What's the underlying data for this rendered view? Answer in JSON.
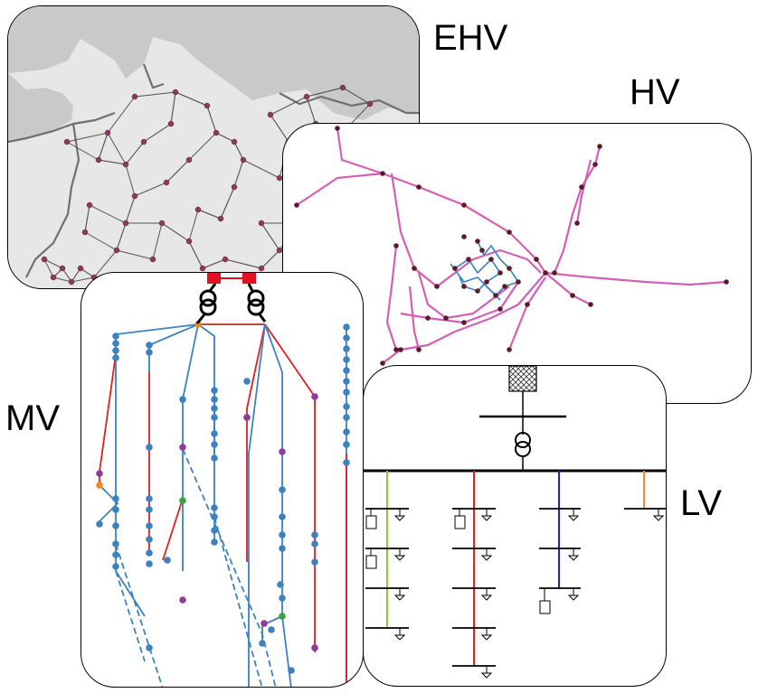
{
  "levels": {
    "ehv": "EHV",
    "hv": "HV",
    "mv": "MV",
    "lv": "LV"
  },
  "colors": {
    "ehv_node": "#8b3a5e",
    "ehv_land": "#e6e6e6",
    "ehv_sea": "#c8c8c8",
    "hv_line": "#d45fb5",
    "hv_inner": "#3c82c0",
    "hv_node": "#5a1a2a",
    "mv_line": "#3c82c0",
    "mv_red": "#e02020",
    "mv_purple": "#8e3a9e",
    "mv_orange": "#f08a1e",
    "mv_green": "#3aa03a",
    "mv_feed": "#b05030",
    "substation": "#e01020",
    "lv_green": "#8ec63f",
    "lv_red": "#e02020",
    "lv_blue": "#2020d0",
    "lv_orange": "#f08a30"
  }
}
